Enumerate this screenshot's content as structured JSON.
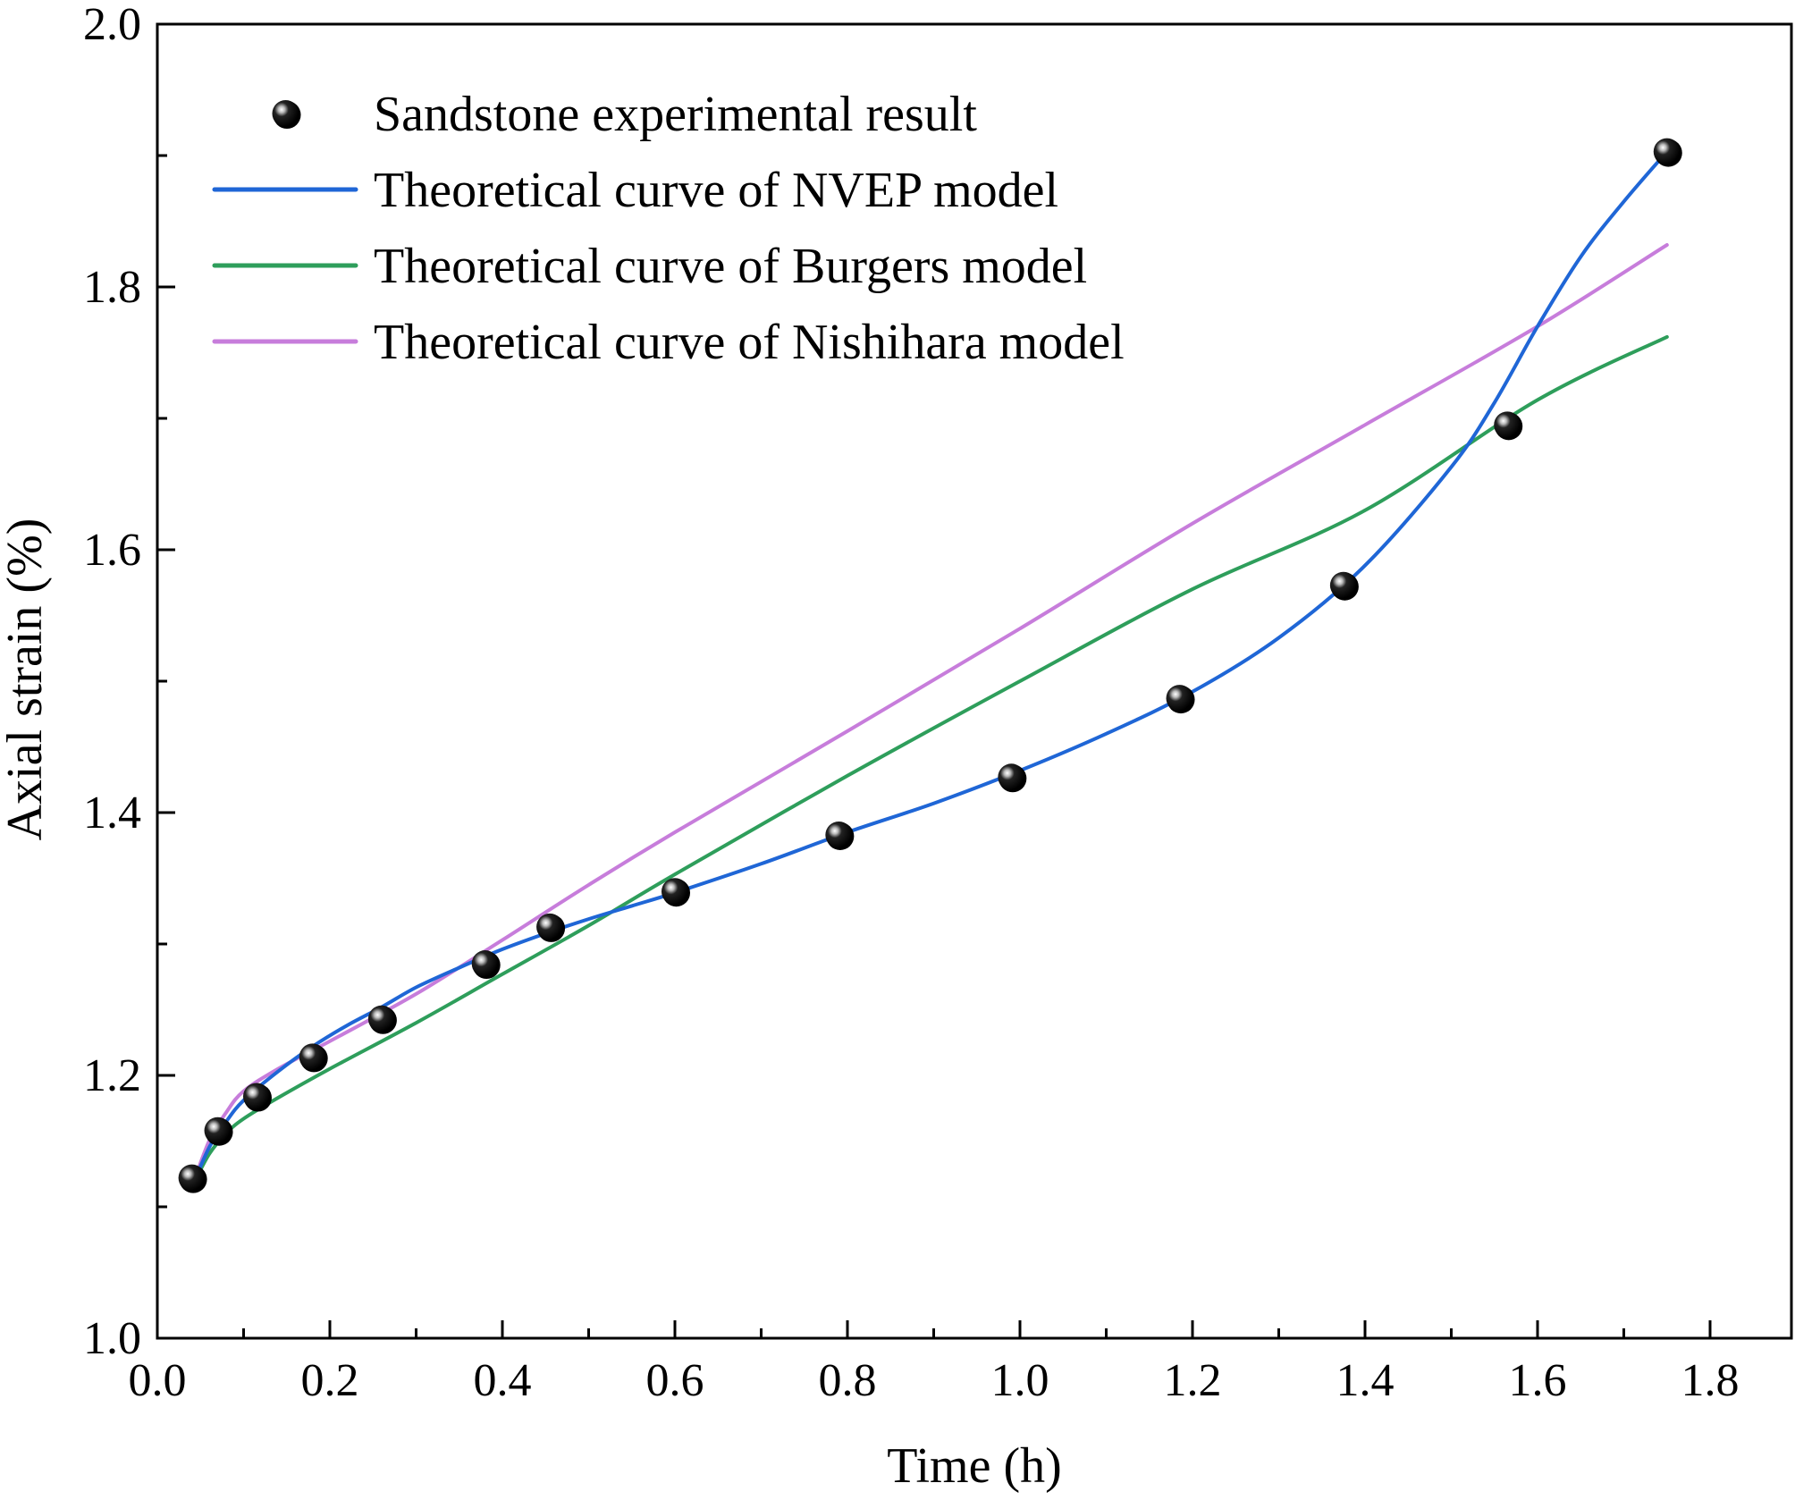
{
  "chart_data": {
    "type": "line",
    "title": "",
    "xlabel": "Time (h)",
    "ylabel": "Axial strain (%)",
    "xlim": [
      0.0,
      1.9
    ],
    "ylim": [
      1.0,
      2.0
    ],
    "x_ticks": [
      "0.0",
      "0.2",
      "0.4",
      "0.6",
      "0.8",
      "1.0",
      "1.2",
      "1.4",
      "1.6",
      "1.8"
    ],
    "y_ticks": [
      "1.0",
      "1.2",
      "1.4",
      "1.6",
      "1.8",
      "2.0"
    ],
    "legend_position": "top-left",
    "grid": false,
    "series": [
      {
        "name": "Sandstone experimental result",
        "kind": "scatter",
        "color": "#000000",
        "x": [
          0.04,
          0.07,
          0.115,
          0.18,
          0.26,
          0.38,
          0.455,
          0.6,
          0.79,
          0.99,
          1.185,
          1.375,
          1.565,
          1.75
        ],
        "y": [
          1.122,
          1.158,
          1.184,
          1.214,
          1.243,
          1.285,
          1.313,
          1.34,
          1.383,
          1.427,
          1.487,
          1.573,
          1.695,
          1.903
        ]
      },
      {
        "name": "Theoretical curve of NVEP model",
        "kind": "line",
        "color": "#1f66d6",
        "x": [
          0.04,
          0.06,
          0.08,
          0.1,
          0.14,
          0.18,
          0.22,
          0.26,
          0.3,
          0.35,
          0.4,
          0.45,
          0.5,
          0.55,
          0.6,
          0.7,
          0.8,
          0.9,
          1.0,
          1.1,
          1.2,
          1.3,
          1.4,
          1.5,
          1.55,
          1.6,
          1.65,
          1.7,
          1.75
        ],
        "y": [
          1.115,
          1.145,
          1.165,
          1.181,
          1.203,
          1.222,
          1.238,
          1.252,
          1.267,
          1.282,
          1.296,
          1.308,
          1.319,
          1.329,
          1.339,
          1.361,
          1.385,
          1.407,
          1.432,
          1.46,
          1.492,
          1.533,
          1.588,
          1.663,
          1.712,
          1.77,
          1.823,
          1.865,
          1.903
        ]
      },
      {
        "name": "Theoretical curve of Burgers model",
        "kind": "line",
        "color": "#2e9e5b",
        "x": [
          0.04,
          0.06,
          0.08,
          0.1,
          0.14,
          0.2,
          0.3,
          0.4,
          0.5,
          0.6,
          0.8,
          1.0,
          1.2,
          1.4,
          1.6,
          1.75
        ],
        "y": [
          1.115,
          1.14,
          1.156,
          1.167,
          1.183,
          1.205,
          1.24,
          1.277,
          1.314,
          1.353,
          1.428,
          1.5,
          1.57,
          1.63,
          1.714,
          1.762
        ]
      },
      {
        "name": "Theoretical curve of Nishihara model",
        "kind": "line",
        "color": "#c77ddb",
        "x": [
          0.04,
          0.06,
          0.08,
          0.1,
          0.14,
          0.2,
          0.3,
          0.4,
          0.5,
          0.6,
          0.8,
          1.0,
          1.2,
          1.4,
          1.6,
          1.75
        ],
        "y": [
          1.115,
          1.15,
          1.172,
          1.188,
          1.205,
          1.226,
          1.262,
          1.303,
          1.345,
          1.385,
          1.462,
          1.54,
          1.62,
          1.695,
          1.77,
          1.832
        ]
      }
    ]
  }
}
